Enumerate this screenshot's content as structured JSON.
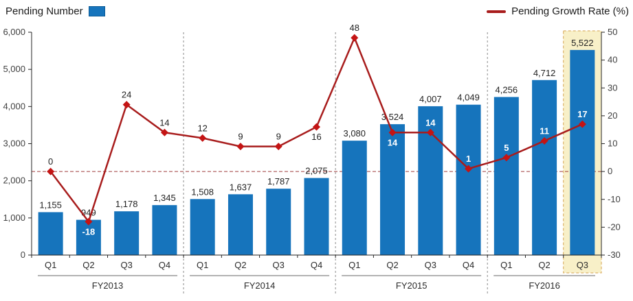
{
  "legend": {
    "bar_label": "Pending Number",
    "line_label": "Pending Growth Rate (%)"
  },
  "colors": {
    "bar": "#1674BC",
    "bar_border": "#0d5c97",
    "line": "#A81C1C",
    "marker": "#C41414",
    "zero_line": "#9E3A3A",
    "separator": "#8C8C8C",
    "axis": "#222222",
    "tick_label": "#404040",
    "value_label": "#222222",
    "in_bar_label": "#FFFFFF",
    "highlight_fill": "#F8F0C8",
    "highlight_border": "#D4A24E",
    "group_line": "#666666"
  },
  "chart_data": {
    "type": "combo-bar-line",
    "title": "",
    "legend_position": "top",
    "grid": false,
    "groups": [
      {
        "label": "FY2013",
        "quarters": [
          "Q1",
          "Q2",
          "Q3",
          "Q4"
        ]
      },
      {
        "label": "FY2014",
        "quarters": [
          "Q1",
          "Q2",
          "Q3",
          "Q4"
        ]
      },
      {
        "label": "FY2015",
        "quarters": [
          "Q1",
          "Q2",
          "Q3",
          "Q4"
        ]
      },
      {
        "label": "FY2016",
        "quarters": [
          "Q1",
          "Q2",
          "Q3"
        ]
      }
    ],
    "series": [
      {
        "name": "Pending Number",
        "type": "bar",
        "axis": "left",
        "values": [
          1155,
          949,
          1178,
          1345,
          1508,
          1637,
          1787,
          2075,
          3080,
          3524,
          4007,
          4049,
          4256,
          4712,
          5522
        ],
        "labels": [
          "1,155",
          "949",
          "1,178",
          "1,345",
          "1,508",
          "1,637",
          "1,787",
          "2,075",
          "3,080",
          "3,524",
          "4,007",
          "4,049",
          "4,256",
          "4,712",
          "5,522"
        ]
      },
      {
        "name": "Pending Growth Rate (%)",
        "type": "line",
        "axis": "right",
        "values": [
          0,
          -18,
          24,
          14,
          12,
          9,
          9,
          16,
          48,
          14,
          14,
          1,
          5,
          11,
          17
        ],
        "labels": [
          "0",
          "-18",
          "24",
          "14",
          "12",
          "9",
          "9",
          "16",
          "48",
          "14",
          "14",
          "1",
          "5",
          "11",
          "17"
        ],
        "label_placement": [
          "above",
          "below",
          "above",
          "above",
          "above",
          "above",
          "above",
          "below",
          "above",
          "below",
          "above",
          "above",
          "above",
          "above",
          "above"
        ],
        "label_color": [
          "dark",
          "white",
          "dark",
          "dark",
          "dark",
          "dark",
          "dark",
          "dark",
          "dark",
          "white",
          "white",
          "white",
          "white",
          "white",
          "white"
        ]
      }
    ],
    "left_axis": {
      "min": 0,
      "max": 6000,
      "step": 1000,
      "tick_labels": [
        "6,000",
        "5,000",
        "4,000",
        "3,000",
        "2,000",
        "1,000",
        "0"
      ]
    },
    "right_axis": {
      "min": -30,
      "max": 50,
      "step": 10,
      "tick_labels": [
        "50",
        "40",
        "30",
        "20",
        "10",
        "0",
        "-10",
        "-20",
        "-30"
      ]
    },
    "reference_line": {
      "axis": "right",
      "value": 0
    },
    "highlight": {
      "group": "FY2016",
      "quarter": "Q3"
    }
  }
}
